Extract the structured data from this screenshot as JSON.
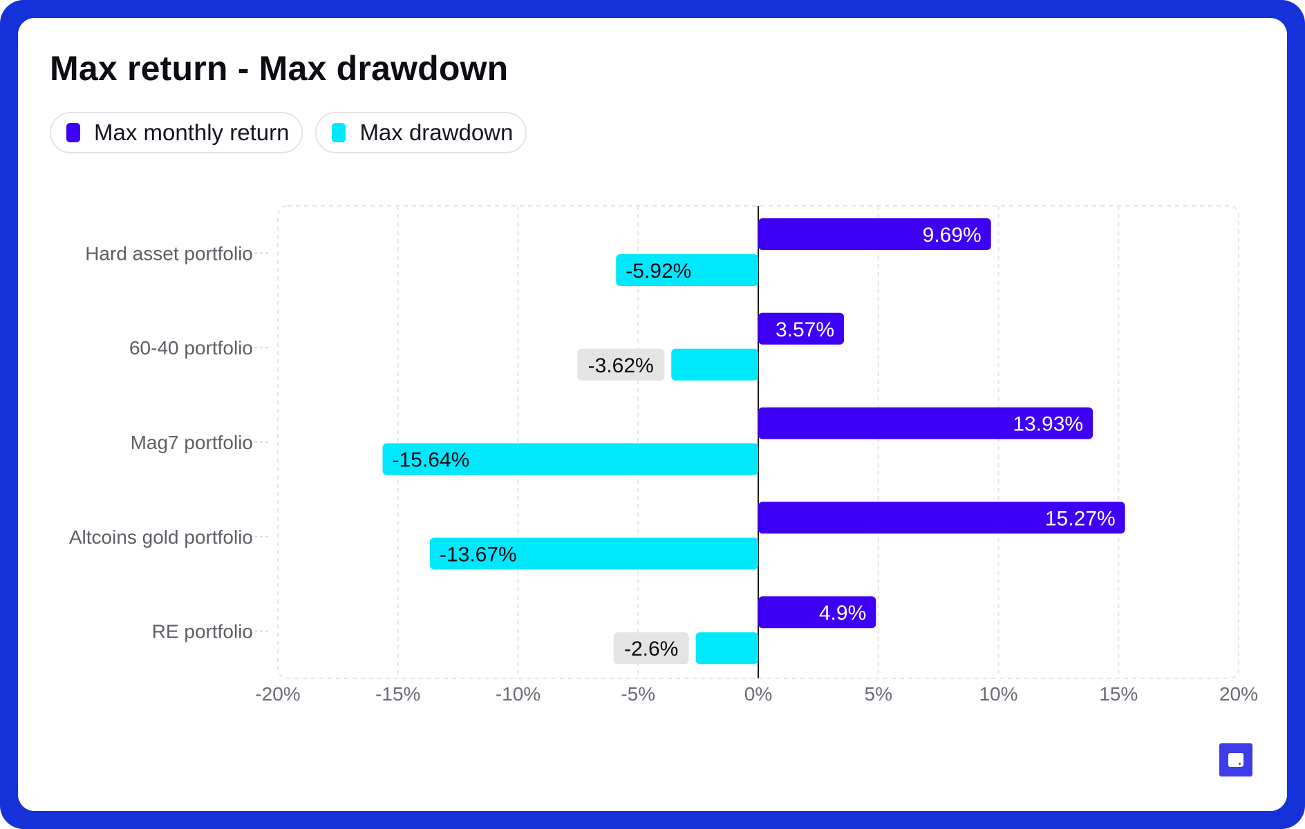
{
  "title": "Max return - Max drawdown",
  "legend": [
    {
      "label": "Max monthly return",
      "color": "#3d00f5"
    },
    {
      "label": "Max drawdown",
      "color": "#00e8fc"
    }
  ],
  "chart_data": {
    "type": "bar",
    "orientation": "horizontal",
    "categories": [
      "Hard asset portfolio",
      "60-40 portfolio",
      "Mag7 portfolio",
      "Altcoins gold portfolio",
      "RE portfolio"
    ],
    "series": [
      {
        "name": "Max monthly return",
        "color": "#3d00f5",
        "values": [
          9.69,
          3.57,
          13.93,
          15.27,
          4.9
        ],
        "labels": [
          "9.69%",
          "3.57%",
          "13.93%",
          "15.27%",
          "4.9%"
        ]
      },
      {
        "name": "Max drawdown",
        "color": "#00e8fc",
        "values": [
          -5.92,
          -3.62,
          -15.64,
          -13.67,
          -2.6
        ],
        "labels": [
          "-5.92%",
          "-3.62%",
          "-15.64%",
          "-13.67%",
          "-2.6%"
        ]
      }
    ],
    "xlim": [
      -20,
      20
    ],
    "xticks": [
      -20,
      -15,
      -10,
      -5,
      0,
      5,
      10,
      15,
      20
    ],
    "xtick_labels": [
      "-20%",
      "-15%",
      "-10%",
      "-5%",
      "0%",
      "5%",
      "10%",
      "15%",
      "20%"
    ],
    "grid": true,
    "legend_position": "top-left"
  },
  "corner_button": {
    "icon": "comment-icon"
  }
}
